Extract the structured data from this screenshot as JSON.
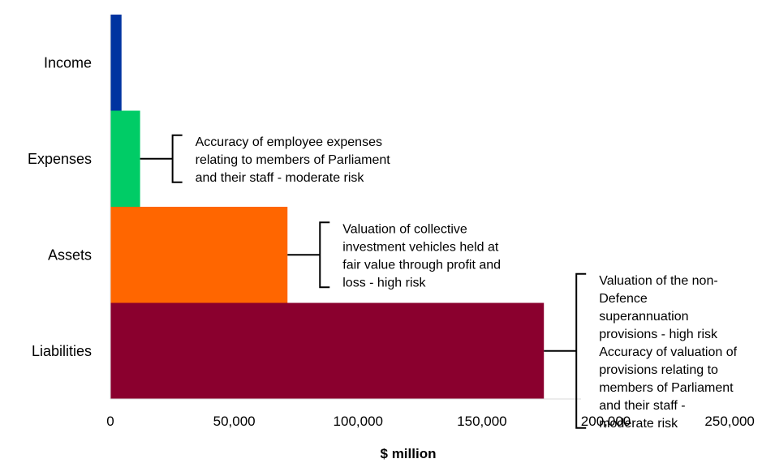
{
  "chart_data": {
    "type": "bar",
    "orientation": "horizontal",
    "title": "",
    "xlabel": "$ million",
    "ylabel": "",
    "xlim": [
      0,
      250000
    ],
    "xticks": [
      0,
      50000,
      100000,
      150000,
      200000,
      250000
    ],
    "xtick_labels": [
      "0",
      "50,000",
      "100,000",
      "150,000",
      "200,000",
      "250,000"
    ],
    "grid": false,
    "legend": "none",
    "categories": [
      "Income",
      "Expenses",
      "Assets",
      "Liabilities"
    ],
    "values": [
      4500,
      12000,
      71500,
      175000
    ],
    "colors": [
      "#0033a0",
      "#00cc66",
      "#ff6600",
      "#8a002e"
    ],
    "annotations": [
      {
        "category": "Expenses",
        "lines": [
          "Accuracy of employee expenses",
          "relating to members of Parliament",
          "and their staff - moderate risk"
        ]
      },
      {
        "category": "Assets",
        "lines": [
          "Valuation of collective",
          "investment vehicles held at",
          "fair value through profit and",
          "loss - high risk"
        ]
      },
      {
        "category": "Liabilities",
        "lines": [
          "Valuation of the non-",
          "Defence",
          "superannuation",
          "provisions - high risk",
          "Accuracy of valuation of",
          "provisions relating to",
          "members of Parliament",
          "and their staff -",
          "moderate risk"
        ]
      }
    ]
  }
}
